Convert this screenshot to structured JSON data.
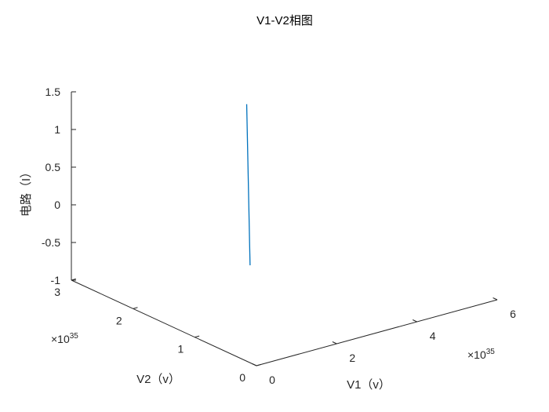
{
  "chart_data": {
    "type": "line",
    "title": "V1-V2相图",
    "xlabel": "V1（v）",
    "ylabel": "V2（v）",
    "zlabel": "电路（I）",
    "x_exponent_label": "×10^35",
    "y_exponent_label": "×10^35",
    "xlim": [
      0,
      6
    ],
    "ylim": [
      0,
      3
    ],
    "zlim": [
      -1,
      1.5
    ],
    "x_ticks": [
      "0",
      "2",
      "4",
      "6"
    ],
    "y_ticks": [
      "0",
      "1",
      "2",
      "3"
    ],
    "z_ticks": [
      "-1",
      "-0.5",
      "0",
      "0.5",
      "1",
      "1.5"
    ],
    "grid": false,
    "series": [
      {
        "color": "#0072BD",
        "x": [
          3.3,
          3.6
        ],
        "y": [
          2.25,
          2.5
        ],
        "z": [
          -1,
          1
        ]
      }
    ]
  }
}
